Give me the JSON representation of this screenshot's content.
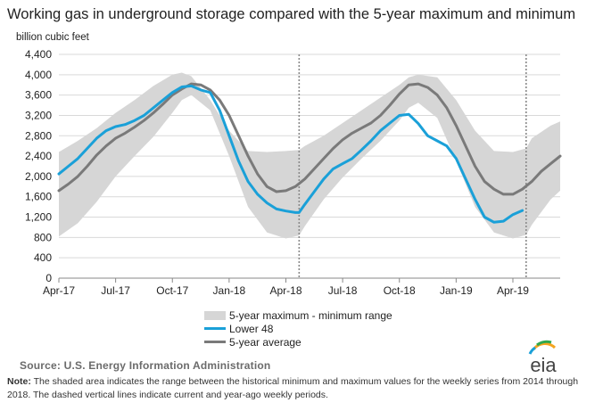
{
  "title": "Working gas in underground  storage compared with the 5-year maximum and minimum",
  "unit_label": "billion cubic feet",
  "colors": {
    "band": "#d6d6d6",
    "lower48": "#1aa0d8",
    "average": "#7a7a7a",
    "grid": "#d9d9d9",
    "dashed": "#8a8a8a"
  },
  "legend": {
    "band": "5-year maximum - minimum range",
    "lower48": "Lower 48",
    "average": "5-year average"
  },
  "source": "Source:  U.S. Energy Information Administration",
  "note_label": "Note:",
  "note_text": " The shaded area indicates the range between the historical minimum and maximum values for the weekly series from 2014 through 2018. The dashed vertical lines indicate current and year-ago weekly periods.",
  "logo_text": "eia",
  "chart_data": {
    "type": "area",
    "title": "Working gas in underground  storage compared with the 5-year maximum and minimum",
    "ylabel": "billion cubic feet",
    "ylim": [
      0,
      4400
    ],
    "yticks": [
      0,
      400,
      800,
      1200,
      1600,
      2000,
      2400,
      2800,
      3200,
      3600,
      4000,
      4400
    ],
    "xlim_months": [
      0,
      26.5
    ],
    "xticks": [
      {
        "m": 0,
        "label": "Apr-17"
      },
      {
        "m": 3,
        "label": "Jul-17"
      },
      {
        "m": 6,
        "label": "Oct-17"
      },
      {
        "m": 9,
        "label": "Jan-18"
      },
      {
        "m": 12,
        "label": "Apr-18"
      },
      {
        "m": 15,
        "label": "Jul-18"
      },
      {
        "m": 18,
        "label": "Oct-18"
      },
      {
        "m": 21,
        "label": "Jan-19"
      },
      {
        "m": 24,
        "label": "Apr-19"
      }
    ],
    "grid": "horizontal",
    "legend_position": "bottom",
    "current_week_markers_months": [
      12.7,
      24.7
    ],
    "band": {
      "name": "5-year maximum - minimum range",
      "x_months": [
        0,
        1,
        2,
        3,
        4,
        5,
        6,
        6.5,
        7,
        8,
        9,
        10,
        11,
        12,
        12.7,
        13,
        14,
        15,
        16,
        17,
        18,
        18.5,
        19,
        20,
        21,
        22,
        23,
        24,
        24.7,
        25,
        26,
        26.5
      ],
      "max": [
        2480,
        2700,
        2950,
        3250,
        3500,
        3780,
        4000,
        4040,
        3970,
        3500,
        2900,
        2500,
        2480,
        2500,
        2520,
        2600,
        2800,
        3050,
        3300,
        3550,
        3800,
        3950,
        4000,
        3950,
        3500,
        2900,
        2500,
        2480,
        2550,
        2750,
        3000,
        3080
      ],
      "min": [
        820,
        1080,
        1500,
        2000,
        2400,
        2780,
        3250,
        3500,
        3600,
        3300,
        2400,
        1400,
        900,
        780,
        840,
        1020,
        1550,
        1980,
        2350,
        2700,
        3100,
        3350,
        3450,
        3150,
        2300,
        1400,
        900,
        780,
        850,
        1050,
        1550,
        1720
      ]
    },
    "series": [
      {
        "name": "Lower 48",
        "x_months": [
          0,
          0.5,
          1,
          1.5,
          2,
          2.5,
          3,
          3.5,
          4,
          4.5,
          5,
          5.5,
          6,
          6.5,
          7,
          7.5,
          8,
          8.5,
          9,
          9.5,
          10,
          10.5,
          11,
          11.5,
          12,
          12.5,
          12.7,
          13,
          13.5,
          14,
          14.5,
          15,
          15.5,
          16,
          16.5,
          17,
          17.5,
          18,
          18.5,
          19,
          19.5,
          20,
          20.5,
          21,
          21.5,
          22,
          22.5,
          23,
          23.5,
          24,
          24.5
        ],
        "values": [
          2050,
          2200,
          2350,
          2550,
          2750,
          2900,
          2980,
          3020,
          3100,
          3200,
          3350,
          3500,
          3650,
          3760,
          3780,
          3700,
          3650,
          3300,
          2800,
          2300,
          1900,
          1650,
          1480,
          1360,
          1320,
          1290,
          1290,
          1450,
          1700,
          1950,
          2150,
          2250,
          2350,
          2520,
          2700,
          2900,
          3050,
          3200,
          3220,
          3040,
          2800,
          2700,
          2600,
          2350,
          1950,
          1550,
          1200,
          1100,
          1120,
          1250,
          1330
        ]
      },
      {
        "name": "5-year average",
        "x_months": [
          0,
          0.5,
          1,
          1.5,
          2,
          2.5,
          3,
          3.5,
          4,
          4.5,
          5,
          5.5,
          6,
          6.5,
          7,
          7.5,
          8,
          8.5,
          9,
          9.5,
          10,
          10.5,
          11,
          11.5,
          12,
          12.5,
          13,
          13.5,
          14,
          14.5,
          15,
          15.5,
          16,
          16.5,
          17,
          17.5,
          18,
          18.5,
          19,
          19.5,
          20,
          20.5,
          21,
          21.5,
          22,
          22.5,
          23,
          23.5,
          24,
          24.5,
          25,
          25.5,
          26,
          26.5
        ],
        "values": [
          1720,
          1850,
          2000,
          2200,
          2420,
          2600,
          2750,
          2850,
          2970,
          3100,
          3250,
          3420,
          3600,
          3720,
          3820,
          3800,
          3700,
          3500,
          3200,
          2800,
          2400,
          2050,
          1800,
          1700,
          1720,
          1800,
          1950,
          2150,
          2350,
          2550,
          2720,
          2850,
          2950,
          3050,
          3200,
          3400,
          3620,
          3800,
          3820,
          3750,
          3600,
          3350,
          3000,
          2600,
          2200,
          1900,
          1750,
          1650,
          1650,
          1750,
          1900,
          2100,
          2250,
          2400
        ]
      }
    ]
  }
}
